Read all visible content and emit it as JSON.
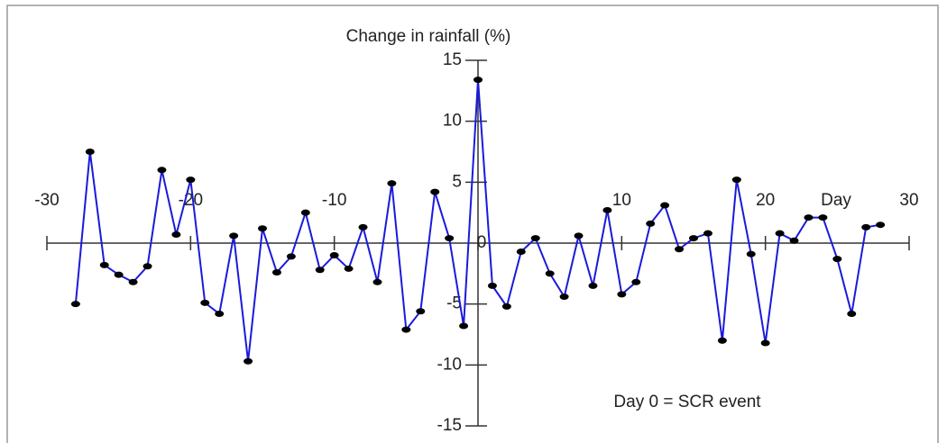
{
  "chart_data": {
    "type": "line",
    "y_label": "Change in rainfall (%)",
    "x_label": "Day",
    "annotation": "Day 0 = SCR event",
    "x": [
      -28,
      -27,
      -26,
      -25,
      -24,
      -23,
      -22,
      -21,
      -20,
      -19,
      -18,
      -17,
      -16,
      -15,
      -14,
      -13,
      -12,
      -11,
      -10,
      -9,
      -8,
      -7,
      -6,
      -5,
      -4,
      -3,
      -2,
      -1,
      0,
      1,
      2,
      3,
      4,
      5,
      6,
      7,
      8,
      9,
      10,
      11,
      12,
      13,
      14,
      15,
      16,
      17,
      18,
      19,
      20,
      21,
      22,
      23,
      24,
      25,
      26,
      27,
      28
    ],
    "series": [
      {
        "name": "Change in rainfall",
        "color": "#1a1adb",
        "marker_color": "#000000",
        "values": [
          -5.0,
          7.5,
          -1.8,
          -2.6,
          -3.2,
          -1.9,
          6.0,
          0.7,
          5.2,
          -4.9,
          -5.8,
          0.6,
          -9.7,
          1.2,
          -2.4,
          -1.1,
          2.5,
          -2.2,
          -1.0,
          -2.1,
          1.3,
          -3.2,
          4.9,
          -7.1,
          -5.6,
          4.2,
          0.4,
          -6.8,
          13.4,
          -3.5,
          -5.2,
          -0.7,
          0.4,
          -2.5,
          -4.4,
          0.6,
          -3.5,
          2.7,
          -4.2,
          -3.2,
          1.6,
          3.1,
          -0.5,
          0.4,
          0.8,
          -8.0,
          5.2,
          -0.9,
          -8.2,
          0.8,
          0.2,
          2.1,
          2.1,
          -1.3,
          -5.8,
          1.3,
          1.5
        ]
      }
    ],
    "xlim": [
      -30,
      30
    ],
    "xticks": [
      -30,
      -20,
      -10,
      0,
      10,
      20,
      30
    ],
    "ylim": [
      -15,
      15
    ],
    "yticks": [
      -15,
      -10,
      -5,
      5,
      10,
      15
    ]
  }
}
